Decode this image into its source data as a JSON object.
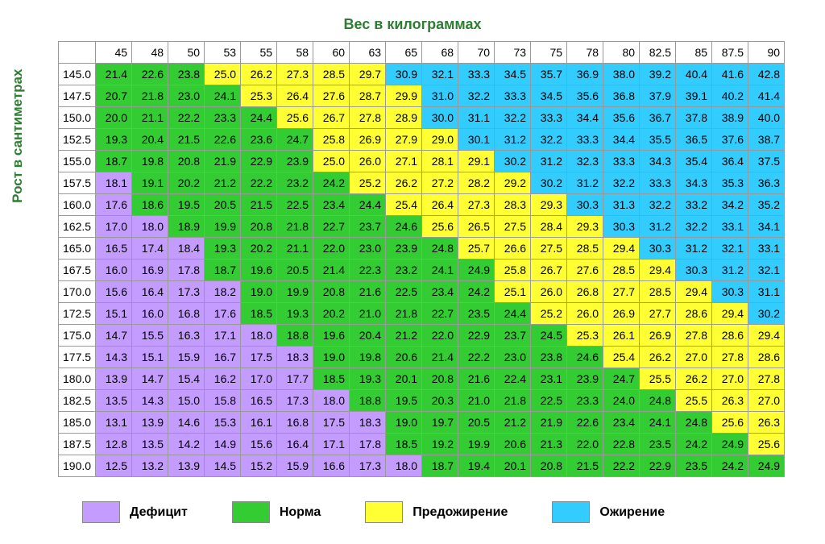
{
  "chart": {
    "type": "heatmap-table",
    "title_x": "Вес в килограммах",
    "title_y": "Рост в сантиметрах",
    "weights": [
      45,
      48,
      50,
      53,
      55,
      58,
      60,
      63,
      65,
      68,
      70,
      73,
      75,
      78,
      80,
      82.5,
      85,
      87.5,
      90
    ],
    "heights": [
      145.0,
      147.5,
      150.0,
      152.5,
      155.0,
      157.5,
      160.0,
      162.5,
      165.0,
      167.5,
      170.0,
      172.5,
      175.0,
      177.5,
      180.0,
      182.5,
      185.0,
      187.5,
      190.0
    ],
    "values": [
      [
        21.4,
        22.6,
        23.8,
        25.0,
        26.2,
        27.3,
        28.5,
        29.7,
        30.9,
        32.1,
        33.3,
        34.5,
        35.7,
        36.9,
        38.0,
        39.2,
        40.4,
        41.6,
        42.8
      ],
      [
        20.7,
        21.8,
        23.0,
        24.1,
        25.3,
        26.4,
        27.6,
        28.7,
        29.9,
        31.0,
        32.2,
        33.3,
        34.5,
        35.6,
        36.8,
        37.9,
        39.1,
        40.2,
        41.4
      ],
      [
        20.0,
        21.1,
        22.2,
        23.3,
        24.4,
        25.6,
        26.7,
        27.8,
        28.9,
        30.0,
        31.1,
        32.2,
        33.3,
        34.4,
        35.6,
        36.7,
        37.8,
        38.9,
        40.0
      ],
      [
        19.3,
        20.4,
        21.5,
        22.6,
        23.6,
        24.7,
        25.8,
        26.9,
        27.9,
        29.0,
        30.1,
        31.2,
        32.2,
        33.3,
        34.4,
        35.5,
        36.5,
        37.6,
        38.7
      ],
      [
        18.7,
        19.8,
        20.8,
        21.9,
        22.9,
        23.9,
        25.0,
        26.0,
        27.1,
        28.1,
        29.1,
        30.2,
        31.2,
        32.3,
        33.3,
        34.3,
        35.4,
        36.4,
        37.5
      ],
      [
        18.1,
        19.1,
        20.2,
        21.2,
        22.2,
        23.2,
        24.2,
        25.2,
        26.2,
        27.2,
        28.2,
        29.2,
        30.2,
        31.2,
        32.2,
        33.3,
        34.3,
        35.3,
        36.3
      ],
      [
        17.6,
        18.6,
        19.5,
        20.5,
        21.5,
        22.5,
        23.4,
        24.4,
        25.4,
        26.4,
        27.3,
        28.3,
        29.3,
        30.3,
        31.3,
        32.2,
        33.2,
        34.2,
        35.2
      ],
      [
        17.0,
        18.0,
        18.9,
        19.9,
        20.8,
        21.8,
        22.7,
        23.7,
        24.6,
        25.6,
        26.5,
        27.5,
        28.4,
        29.3,
        30.3,
        31.2,
        32.2,
        33.1,
        34.1
      ],
      [
        16.5,
        17.4,
        18.4,
        19.3,
        20.2,
        21.1,
        22.0,
        23.0,
        23.9,
        24.8,
        25.7,
        26.6,
        27.5,
        28.5,
        29.4,
        30.3,
        31.2,
        32.1,
        33.1
      ],
      [
        16.0,
        16.9,
        17.8,
        18.7,
        19.6,
        20.5,
        21.4,
        22.3,
        23.2,
        24.1,
        24.9,
        25.8,
        26.7,
        27.6,
        28.5,
        29.4,
        30.3,
        31.2,
        32.1
      ],
      [
        15.6,
        16.4,
        17.3,
        18.2,
        19.0,
        19.9,
        20.8,
        21.6,
        22.5,
        23.4,
        24.2,
        25.1,
        26.0,
        26.8,
        27.7,
        28.5,
        29.4,
        30.3,
        31.1
      ],
      [
        15.1,
        16.0,
        16.8,
        17.6,
        18.5,
        19.3,
        20.2,
        21.0,
        21.8,
        22.7,
        23.5,
        24.4,
        25.2,
        26.0,
        26.9,
        27.7,
        28.6,
        29.4,
        30.2
      ],
      [
        14.7,
        15.5,
        16.3,
        17.1,
        18.0,
        18.8,
        19.6,
        20.4,
        21.2,
        22.0,
        22.9,
        23.7,
        24.5,
        25.3,
        26.1,
        26.9,
        27.8,
        28.6,
        29.4
      ],
      [
        14.3,
        15.1,
        15.9,
        16.7,
        17.5,
        18.3,
        19.0,
        19.8,
        20.6,
        21.4,
        22.2,
        23.0,
        23.8,
        24.6,
        25.4,
        26.2,
        27.0,
        27.8,
        28.6
      ],
      [
        13.9,
        14.7,
        15.4,
        16.2,
        17.0,
        17.7,
        18.5,
        19.3,
        20.1,
        20.8,
        21.6,
        22.4,
        23.1,
        23.9,
        24.7,
        25.5,
        26.2,
        27.0,
        27.8
      ],
      [
        13.5,
        14.3,
        15.0,
        15.8,
        16.5,
        17.3,
        18.0,
        18.8,
        19.5,
        20.3,
        21.0,
        21.8,
        22.5,
        23.3,
        24.0,
        24.8,
        25.5,
        26.3,
        27.0
      ],
      [
        13.1,
        13.9,
        14.6,
        15.3,
        16.1,
        16.8,
        17.5,
        18.3,
        19.0,
        19.7,
        20.5,
        21.2,
        21.9,
        22.6,
        23.4,
        24.1,
        24.8,
        25.6,
        26.3
      ],
      [
        12.8,
        13.5,
        14.2,
        14.9,
        15.6,
        16.4,
        17.1,
        17.8,
        18.5,
        19.2,
        19.9,
        20.6,
        21.3,
        22.0,
        22.8,
        23.5,
        24.2,
        24.9,
        25.6
      ],
      [
        12.5,
        13.2,
        13.9,
        14.5,
        15.2,
        15.9,
        16.6,
        17.3,
        18.0,
        18.7,
        19.4,
        20.1,
        20.8,
        21.5,
        22.2,
        22.9,
        23.5,
        24.2,
        24.9
      ]
    ],
    "font_size": 14,
    "border_color": "#999999",
    "background_color": "#ffffff",
    "title_color": "#2e7d32",
    "categories": {
      "deficit": {
        "color": "#c49bff",
        "max": 18.5
      },
      "normal": {
        "color": "#33cc33",
        "max": 25.0
      },
      "preobese": {
        "color": "#ffff33",
        "max": 30.0
      },
      "obese": {
        "color": "#33ccff",
        "max": 999
      }
    }
  },
  "legend": {
    "items": [
      {
        "color": "#c49bff",
        "label": "Дефицит"
      },
      {
        "color": "#33cc33",
        "label": "Норма"
      },
      {
        "color": "#ffff33",
        "label": "Предожирение"
      },
      {
        "color": "#33ccff",
        "label": "Ожирение"
      }
    ]
  }
}
